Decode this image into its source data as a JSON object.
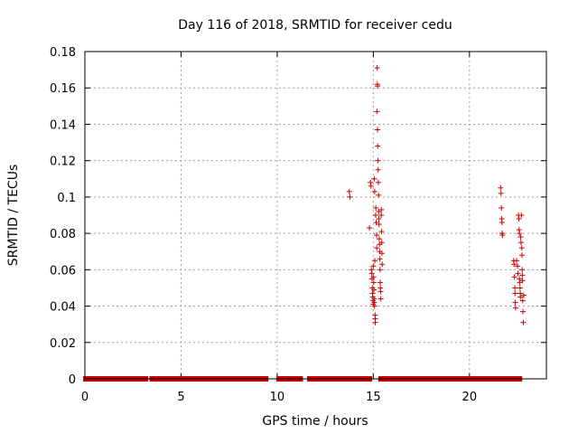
{
  "chart_data": {
    "type": "scatter",
    "title": "Day 116 of 2018, SRMTID for receiver cedu",
    "xlabel": "GPS time / hours",
    "ylabel": "SRMTID / TECUs",
    "xlim": [
      0,
      24
    ],
    "ylim": [
      0,
      0.18
    ],
    "xticks": [
      0,
      5,
      10,
      15,
      20
    ],
    "yticks": [
      0,
      0.02,
      0.04,
      0.06,
      0.08,
      0.1,
      0.12,
      0.14,
      0.16,
      0.18
    ],
    "xtick_labels": [
      "0",
      "5",
      "10",
      "15",
      "20"
    ],
    "ytick_labels": [
      "0",
      "0.02",
      "0.04",
      "0.06",
      "0.08",
      "0.1",
      "0.12",
      "0.14",
      "0.16",
      "0.18"
    ],
    "grid": true,
    "marker": "plus",
    "color": "#cc0000",
    "zero_segments": [
      [
        0.05,
        3.15
      ],
      [
        3.5,
        9.4
      ],
      [
        10.1,
        11.2
      ],
      [
        11.7,
        14.8
      ],
      [
        15.4,
        19.2
      ],
      [
        19.4,
        21.6
      ],
      [
        21.7,
        22.25
      ],
      [
        22.35,
        22.6
      ]
    ],
    "points": [
      [
        13.75,
        0.103
      ],
      [
        13.78,
        0.1
      ],
      [
        14.8,
        0.083
      ],
      [
        14.85,
        0.108
      ],
      [
        14.88,
        0.106
      ],
      [
        14.9,
        0.06
      ],
      [
        14.92,
        0.058
      ],
      [
        14.93,
        0.055
      ],
      [
        14.95,
        0.05
      ],
      [
        14.96,
        0.047
      ],
      [
        14.97,
        0.045
      ],
      [
        14.98,
        0.043
      ],
      [
        15.0,
        0.062
      ],
      [
        15.0,
        0.041
      ],
      [
        15.01,
        0.056
      ],
      [
        15.02,
        0.053
      ],
      [
        15.03,
        0.049
      ],
      [
        15.04,
        0.044
      ],
      [
        15.05,
        0.042
      ],
      [
        15.06,
        0.04
      ],
      [
        15.05,
        0.11
      ],
      [
        15.07,
        0.103
      ],
      [
        15.08,
        0.065
      ],
      [
        15.09,
        0.035
      ],
      [
        15.1,
        0.031
      ],
      [
        15.1,
        0.033
      ],
      [
        15.12,
        0.09
      ],
      [
        15.13,
        0.094
      ],
      [
        15.15,
        0.086
      ],
      [
        15.17,
        0.079
      ],
      [
        15.18,
        0.072
      ],
      [
        15.19,
        0.147
      ],
      [
        15.2,
        0.171
      ],
      [
        15.21,
        0.162
      ],
      [
        15.22,
        0.161
      ],
      [
        15.22,
        0.137
      ],
      [
        15.23,
        0.128
      ],
      [
        15.24,
        0.12
      ],
      [
        15.25,
        0.115
      ],
      [
        15.26,
        0.108
      ],
      [
        15.27,
        0.101
      ],
      [
        15.28,
        0.092
      ],
      [
        15.29,
        0.088
      ],
      [
        15.3,
        0.085
      ],
      [
        15.31,
        0.077
      ],
      [
        15.32,
        0.074
      ],
      [
        15.33,
        0.07
      ],
      [
        15.34,
        0.066
      ],
      [
        15.35,
        0.06
      ],
      [
        15.36,
        0.053
      ],
      [
        15.37,
        0.05
      ],
      [
        15.38,
        0.048
      ],
      [
        15.39,
        0.044
      ],
      [
        15.41,
        0.09
      ],
      [
        15.42,
        0.093
      ],
      [
        15.43,
        0.081
      ],
      [
        15.44,
        0.075
      ],
      [
        15.45,
        0.069
      ],
      [
        15.46,
        0.063
      ],
      [
        21.62,
        0.105
      ],
      [
        21.64,
        0.102
      ],
      [
        21.66,
        0.094
      ],
      [
        21.68,
        0.088
      ],
      [
        21.69,
        0.086
      ],
      [
        21.7,
        0.08
      ],
      [
        21.72,
        0.079
      ],
      [
        22.3,
        0.065
      ],
      [
        22.32,
        0.063
      ],
      [
        22.34,
        0.056
      ],
      [
        22.36,
        0.05
      ],
      [
        22.37,
        0.047
      ],
      [
        22.38,
        0.042
      ],
      [
        22.4,
        0.039
      ],
      [
        22.45,
        0.065
      ],
      [
        22.5,
        0.062
      ],
      [
        22.52,
        0.058
      ],
      [
        22.55,
        0.09
      ],
      [
        22.57,
        0.088
      ],
      [
        22.58,
        0.082
      ],
      [
        22.6,
        0.08
      ],
      [
        22.6,
        0.055
      ],
      [
        22.62,
        0.053
      ],
      [
        22.63,
        0.05
      ],
      [
        22.64,
        0.047
      ],
      [
        22.65,
        0.045
      ],
      [
        22.66,
        0.078
      ],
      [
        22.68,
        0.075
      ],
      [
        22.7,
        0.09
      ],
      [
        22.72,
        0.072
      ],
      [
        22.73,
        0.068
      ],
      [
        22.74,
        0.06
      ],
      [
        22.75,
        0.057
      ],
      [
        22.76,
        0.054
      ],
      [
        22.77,
        0.043
      ],
      [
        22.78,
        0.037
      ],
      [
        22.8,
        0.031
      ],
      [
        22.82,
        0.046
      ]
    ]
  }
}
